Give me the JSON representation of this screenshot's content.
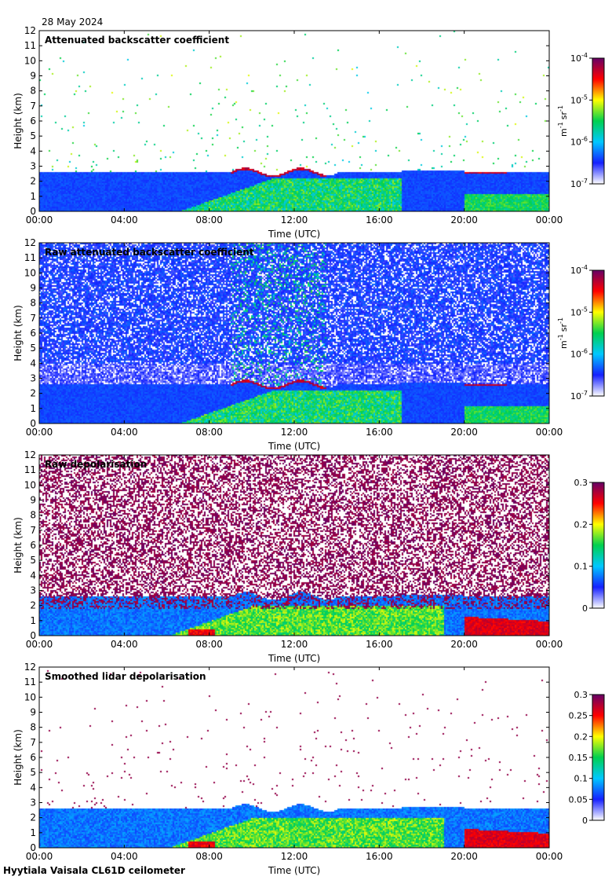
{
  "date": "28 May 2024",
  "footer": "Hyytiala Vaisala CL61D ceilometer",
  "colors": {
    "colormap": [
      "#ffffff",
      "#1520ff",
      "#00c8ff",
      "#00d050",
      "#ffff00",
      "#ff0000",
      "#660066"
    ]
  },
  "chart_data": [
    {
      "type": "heatmap",
      "title": "Attenuated backscatter coefficient",
      "xlabel": "Time (UTC)",
      "ylabel": "Height (km)",
      "xticks": [
        "00:00",
        "04:00",
        "08:00",
        "12:00",
        "16:00",
        "20:00",
        "00:00"
      ],
      "xlim": [
        0,
        24
      ],
      "ylim": [
        0,
        12
      ],
      "yticks": [
        0,
        1,
        2,
        3,
        4,
        5,
        6,
        7,
        8,
        9,
        10,
        11,
        12
      ],
      "colorbar": {
        "scale": "log",
        "range": [
          1e-07,
          0.0001
        ],
        "tick_bases": [
          "10",
          "10",
          "10",
          "10"
        ],
        "tick_exponents": [
          "-7",
          "-6",
          "-5",
          "-4"
        ],
        "label_base_m": "m",
        "label_exp_m": "-1",
        "label_base_sr": "sr",
        "label_exp_sr": "-1"
      },
      "field": "boundary_layer_with_sparse_noise"
    },
    {
      "type": "heatmap",
      "title": "Raw attenuated backscatter coefficient",
      "xlabel": "Time (UTC)",
      "ylabel": "Height (km)",
      "xticks": [
        "00:00",
        "04:00",
        "08:00",
        "12:00",
        "16:00",
        "20:00",
        "00:00"
      ],
      "xlim": [
        0,
        24
      ],
      "ylim": [
        0,
        12
      ],
      "yticks": [
        0,
        1,
        2,
        3,
        4,
        5,
        6,
        7,
        8,
        9,
        10,
        11,
        12
      ],
      "colorbar": {
        "scale": "log",
        "range": [
          1e-07,
          0.0001
        ],
        "tick_bases": [
          "10",
          "10",
          "10",
          "10"
        ],
        "tick_exponents": [
          "-7",
          "-6",
          "-5",
          "-4"
        ],
        "label_base_m": "m",
        "label_exp_m": "-1",
        "label_base_sr": "sr",
        "label_exp_sr": "-1"
      },
      "field": "boundary_layer_with_dense_noise"
    },
    {
      "type": "heatmap",
      "title": "Raw depolarisation",
      "xlabel": "Time (UTC)",
      "ylabel": "Height (km)",
      "xticks": [
        "00:00",
        "04:00",
        "08:00",
        "12:00",
        "16:00",
        "20:00",
        "00:00"
      ],
      "xlim": [
        0,
        24
      ],
      "ylim": [
        0,
        12
      ],
      "yticks": [
        0,
        1,
        2,
        3,
        4,
        5,
        6,
        7,
        8,
        9,
        10,
        11,
        12
      ],
      "colorbar": {
        "scale": "linear",
        "range": [
          0,
          0.3
        ],
        "ticks": [
          "0",
          "0.1",
          "0.2",
          "0.3"
        ]
      },
      "field": "depol_dense_noise"
    },
    {
      "type": "heatmap",
      "title": "Smoothed lidar depolarisation",
      "xlabel": "Time (UTC)",
      "ylabel": "Height (km)",
      "xticks": [
        "00:00",
        "04:00",
        "08:00",
        "12:00",
        "16:00",
        "20:00",
        "00:00"
      ],
      "xlim": [
        0,
        24
      ],
      "ylim": [
        0,
        12
      ],
      "yticks": [
        0,
        1,
        2,
        3,
        4,
        5,
        6,
        7,
        8,
        9,
        10,
        11,
        12
      ],
      "colorbar": {
        "scale": "linear",
        "range": [
          0,
          0.3
        ],
        "ticks": [
          "0",
          "0.05",
          "0.1",
          "0.15",
          "0.2",
          "0.25",
          "0.3"
        ]
      },
      "field": "depol_sparse_noise"
    }
  ]
}
